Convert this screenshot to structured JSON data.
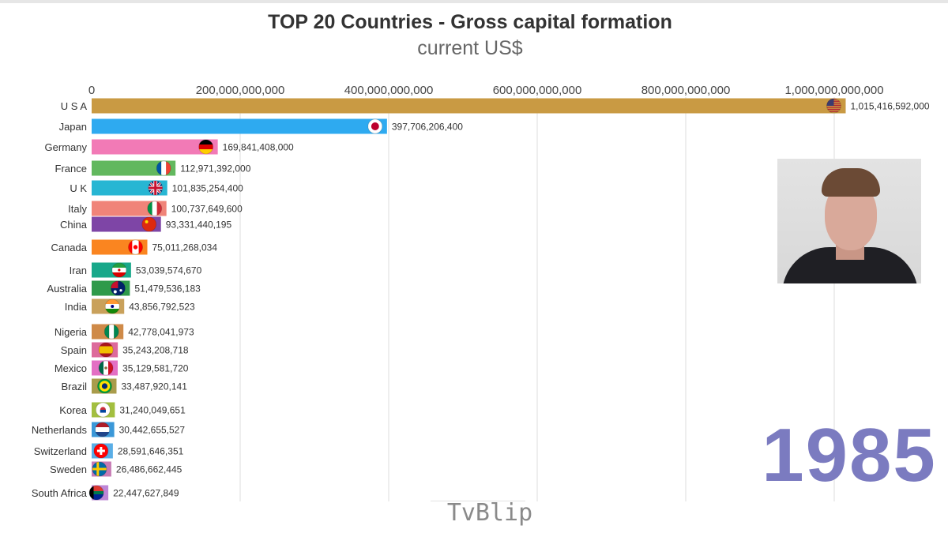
{
  "title": "TOP 20 Countries - Gross capital formation",
  "subtitle": "current US$",
  "year": "1985",
  "watermark": "TvBlip",
  "chart_data": {
    "type": "bar",
    "orientation": "horizontal",
    "title": "TOP 20 Countries - Gross capital formation",
    "subtitle": "current US$",
    "xlim": [
      0,
      1000000000000
    ],
    "x_ticks": [
      0,
      200000000000,
      400000000000,
      600000000000,
      800000000000,
      1000000000000
    ],
    "x_tick_labels": [
      "0",
      "200,000,000,000",
      "400,000,000,000",
      "600,000,000,000",
      "800,000,000,000",
      "1,000,000,000,000"
    ],
    "x_axis_position": "top",
    "grid": true,
    "categories": [
      "U S A",
      "Japan",
      "Germany",
      "France",
      "U K",
      "Italy",
      "China",
      "Canada",
      "Iran",
      "Australia",
      "India",
      "Nigeria",
      "Spain",
      "Mexico",
      "Brazil",
      "Korea",
      "Netherlands",
      "Switzerland",
      "Sweden",
      "South Africa"
    ],
    "values": [
      1015416592000,
      397706206400,
      169841408000,
      112971392000,
      101835254400,
      100737649600,
      93331440195,
      75011268034,
      53039574670,
      51479536183,
      43856792523,
      42778041973,
      35243208718,
      35129581720,
      33487920141,
      31240049651,
      30442655527,
      28591646351,
      26486662445,
      22447627849
    ],
    "value_labels": [
      "1,015,416,592,000",
      "397,706,206,400",
      "169,841,408,000",
      "112,971,392,000",
      "101,835,254,400",
      "100,737,649,600",
      "93,331,440,195",
      "75,011,268,034",
      "53,039,574,670",
      "51,479,536,183",
      "43,856,792,523",
      "42,778,041,973",
      "35,243,208,718",
      "35,129,581,720",
      "33,487,920,141",
      "31,240,049,651",
      "30,442,655,527",
      "28,591,646,351",
      "26,486,662,445",
      "22,447,627,849"
    ],
    "colors": [
      "#c99a43",
      "#2eaaf0",
      "#f27ab6",
      "#62b85e",
      "#27b6d3",
      "#f08479",
      "#7e45a6",
      "#fa8520",
      "#18a88a",
      "#2f9a4a",
      "#c9a15b",
      "#cf8a48",
      "#dd6a9b",
      "#e36fc4",
      "#a99c4b",
      "#a3bf3f",
      "#3b98d8",
      "#5aaee6",
      "#c77bb4",
      "#be86d6"
    ],
    "flags": [
      "us-flag-icon",
      "japan-flag-icon",
      "germany-flag-icon",
      "france-flag-icon",
      "uk-flag-icon",
      "italy-flag-icon",
      "china-flag-icon",
      "canada-flag-icon",
      "iran-flag-icon",
      "australia-flag-icon",
      "india-flag-icon",
      "nigeria-flag-icon",
      "spain-flag-icon",
      "mexico-flag-icon",
      "brazil-flag-icon",
      "korea-flag-icon",
      "netherlands-flag-icon",
      "switzerland-flag-icon",
      "sweden-flag-icon",
      "south-africa-flag-icon"
    ]
  }
}
